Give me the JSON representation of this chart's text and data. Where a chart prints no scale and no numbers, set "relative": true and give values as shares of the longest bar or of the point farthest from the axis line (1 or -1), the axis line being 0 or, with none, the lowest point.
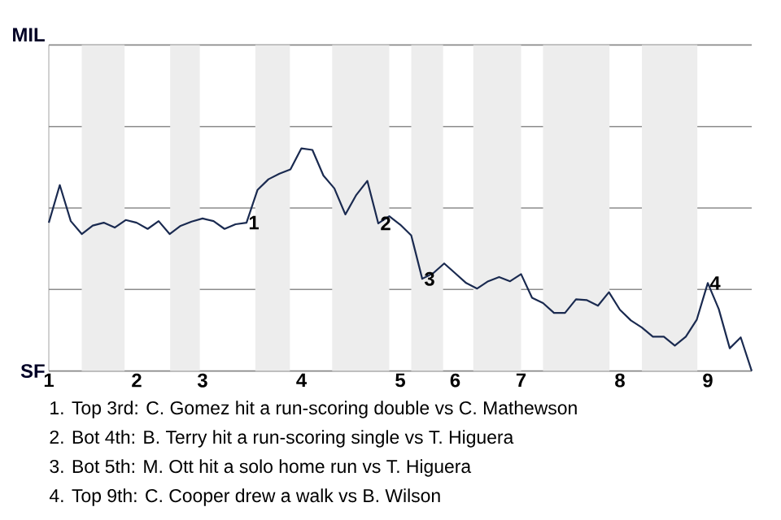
{
  "chart_data": {
    "type": "line",
    "relative": true,
    "categories": [
      "1",
      null,
      null,
      null,
      null,
      null,
      null,
      null,
      "2",
      null,
      null,
      null,
      null,
      null,
      "3",
      null,
      null,
      null,
      null,
      null,
      null,
      null,
      null,
      "4",
      null,
      null,
      null,
      null,
      null,
      null,
      null,
      null,
      "5",
      null,
      null,
      null,
      null,
      "6",
      null,
      null,
      null,
      null,
      null,
      "7",
      null,
      null,
      null,
      null,
      null,
      null,
      null,
      null,
      "8",
      null,
      null,
      null,
      null,
      null,
      null,
      null,
      "9",
      null,
      null,
      null,
      null
    ],
    "series": [
      {
        "color": "#1a2a50",
        "values": [
          0.666,
          0.835,
          0.673,
          0.615,
          0.653,
          0.666,
          0.644,
          0.678,
          0.666,
          0.638,
          0.673,
          0.615,
          0.652,
          0.671,
          0.685,
          0.673,
          0.638,
          0.659,
          0.666,
          0.813,
          0.861,
          0.886,
          0.905,
          1,
          0.993,
          0.878,
          0.82,
          0.703,
          0.791,
          0.854,
          0.663,
          0.695,
          0.657,
          0.609,
          0.414,
          0.439,
          0.483,
          0.439,
          0.395,
          0.37,
          0.403,
          0.422,
          0.403,
          0.435,
          0.329,
          0.305,
          0.261,
          0.261,
          0.322,
          0.318,
          0.293,
          0.354,
          0.275,
          0.227,
          0.195,
          0.154,
          0.154,
          0.114,
          0.154,
          0.231,
          0.395,
          0.278,
          0.102,
          0.151,
          0
        ]
      }
    ],
    "ylim": [
      0,
      1.464
    ],
    "grid": "y",
    "line_style": "solid",
    "annotations": [
      "MIL",
      "SF",
      {
        "text": "1",
        "y": 0.666
      },
      {
        "text": "2",
        "y": 0.663
      },
      {
        "text": "3",
        "y": 0.414
      },
      {
        "text": "4",
        "y": 0.395
      },
      "1. Top 3rd: C. Gomez hit a run-scoring double vs C. Mathewson",
      "2. Bot 4th: B. Terry hit a run-scoring single vs T. Higuera",
      "3. Bot 5th: M. Ott hit a solo home run vs T. Higuera",
      "4. Top 9th: C. Cooper drew a walk vs B. Wilson"
    ]
  }
}
